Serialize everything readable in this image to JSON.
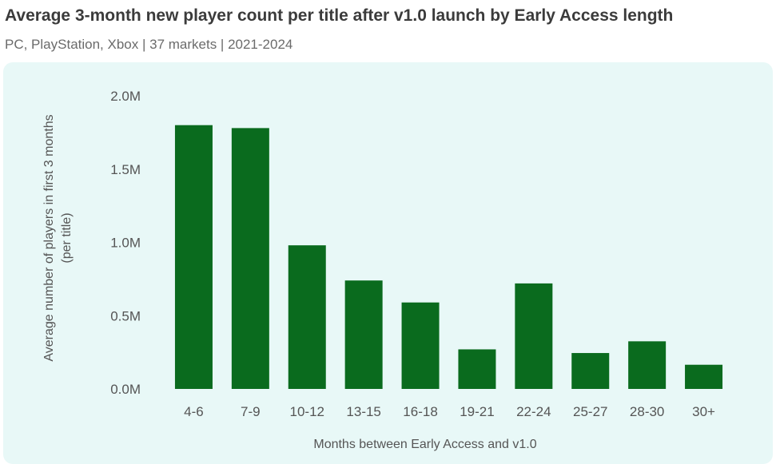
{
  "header": {
    "title": "Average 3-month new player count per title after v1.0 launch by Early Access length",
    "subtitle": "PC, PlayStation, Xbox  | 37 markets | 2021-2024"
  },
  "colors": {
    "bar": "#0a6b1e",
    "panel": "#e8f8f7"
  },
  "chart_data": {
    "type": "bar",
    "categories": [
      "4-6",
      "7-9",
      "10-12",
      "13-15",
      "16-18",
      "19-21",
      "22-24",
      "25-27",
      "28-30",
      "30+"
    ],
    "values": [
      1800000,
      1780000,
      980000,
      740000,
      590000,
      270000,
      720000,
      245000,
      325000,
      165000
    ],
    "ylim": [
      0,
      2000000
    ],
    "yticks": [
      0,
      500000,
      1000000,
      1500000,
      2000000
    ],
    "ytick_labels": [
      "0.0M",
      "0.5M",
      "1.0M",
      "1.5M",
      "2.0M"
    ],
    "xlabel": "Months between Early Access and v1.0",
    "ylabel_line1": "Average number of players in first 3 months",
    "ylabel_line2": "(per title)",
    "grid": false,
    "legend": "none"
  }
}
